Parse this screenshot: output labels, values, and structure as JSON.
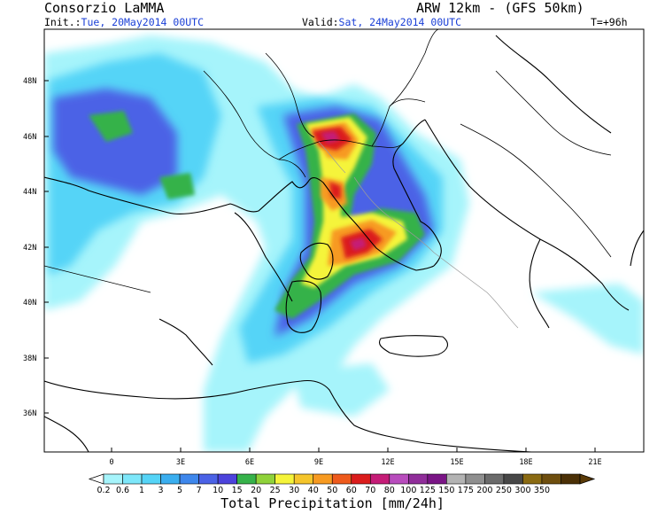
{
  "header": {
    "org": "Consorzio LaMMA",
    "model": "ARW 12km  -  (GFS 50km)",
    "init_label": "Init.:",
    "init_value": "Tue, 20May2014 00UTC",
    "valid_label": "Valid:",
    "valid_value": "Sat, 24May2014 00UTC",
    "forecast_step": "T=+96h"
  },
  "map": {
    "lat_labels": [
      "48N",
      "46N",
      "44N",
      "42N",
      "40N",
      "38N",
      "36N"
    ],
    "lon_labels": [
      "0",
      "3E",
      "6E",
      "9E",
      "12E",
      "15E",
      "18E",
      "21E"
    ],
    "lat_range": [
      34.6,
      49.6
    ],
    "lon_range": [
      -2.9,
      22.8
    ]
  },
  "colorbar": {
    "title": "Total Precipitation [mm/24h]",
    "labels": [
      "0.2",
      "0.6",
      "1",
      "3",
      "5",
      "7",
      "10",
      "15",
      "20",
      "25",
      "30",
      "40",
      "50",
      "60",
      "70",
      "80",
      "100",
      "125",
      "150",
      "175",
      "200",
      "250",
      "300",
      "350"
    ],
    "colors": [
      "#a6f4fb",
      "#7de7fa",
      "#55d4f7",
      "#3aaeef",
      "#3e87ec",
      "#4b62e6",
      "#4c43dc",
      "#36b24a",
      "#8fd23a",
      "#f5f43a",
      "#f5c52b",
      "#f79a21",
      "#ee5a1c",
      "#db1c1c",
      "#c51c77",
      "#b84cbd",
      "#902d9a",
      "#7a1586",
      "#b3b3b3",
      "#8f8f8f",
      "#6b6b6b",
      "#474747",
      "#8a6a12",
      "#6e4e0e",
      "#4b3006"
    ]
  }
}
